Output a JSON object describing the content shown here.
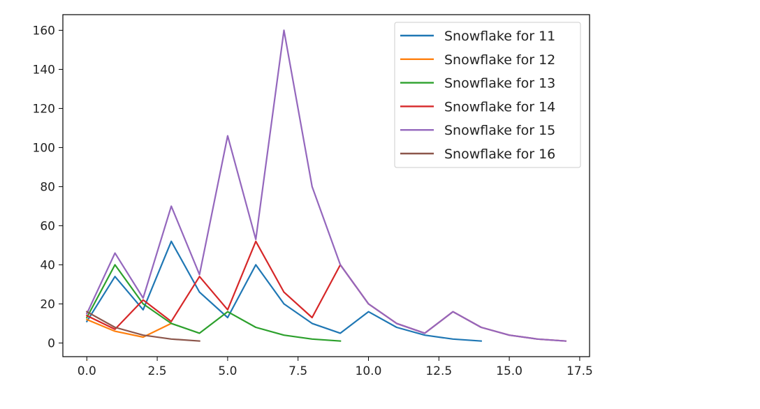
{
  "chart_data": {
    "type": "line",
    "title": "",
    "xlabel": "",
    "ylabel": "",
    "xlim": [
      -0.85,
      17.85
    ],
    "ylim": [
      -7,
      168
    ],
    "xticks": [
      0.0,
      2.5,
      5.0,
      7.5,
      10.0,
      12.5,
      15.0,
      17.5
    ],
    "xtick_labels": [
      "0.0",
      "2.5",
      "5.0",
      "7.5",
      "10.0",
      "12.5",
      "15.0",
      "17.5"
    ],
    "yticks": [
      0,
      20,
      40,
      60,
      80,
      100,
      120,
      140,
      160
    ],
    "ytick_labels": [
      "0",
      "20",
      "40",
      "60",
      "80",
      "100",
      "120",
      "140",
      "160"
    ],
    "grid": false,
    "legend_position": "top-right",
    "series": [
      {
        "name": "Snowflake for 11",
        "color": "#1f77b4",
        "x": [
          0,
          1,
          2,
          3,
          4,
          5,
          6,
          7,
          8,
          9,
          10,
          11,
          12,
          13,
          14
        ],
        "y": [
          11,
          34,
          17,
          52,
          26,
          13,
          40,
          20,
          10,
          5,
          16,
          8,
          4,
          2,
          1
        ]
      },
      {
        "name": "Snowflake for 12",
        "color": "#ff7f0e",
        "x": [
          0,
          1,
          2,
          3
        ],
        "y": [
          12,
          6,
          3,
          10
        ]
      },
      {
        "name": "Snowflake for 13",
        "color": "#2ca02c",
        "x": [
          0,
          1,
          2,
          3,
          4,
          5,
          6,
          7,
          8,
          9
        ],
        "y": [
          13,
          40,
          20,
          10,
          5,
          16,
          8,
          4,
          2,
          1
        ]
      },
      {
        "name": "Snowflake for 14",
        "color": "#d62728",
        "x": [
          0,
          1,
          2,
          3,
          4,
          5,
          6,
          7,
          8,
          9,
          10,
          11,
          12,
          13,
          14,
          15,
          16,
          17
        ],
        "y": [
          14,
          7,
          22,
          11,
          34,
          17,
          52,
          26,
          13,
          40,
          20,
          10,
          5,
          16,
          8,
          4,
          2,
          1
        ]
      },
      {
        "name": "Snowflake for 15",
        "color": "#9467bd",
        "x": [
          0,
          1,
          2,
          3,
          4,
          5,
          6,
          7,
          8,
          9,
          10,
          11,
          12,
          13,
          14,
          15,
          16,
          17
        ],
        "y": [
          15,
          46,
          23,
          70,
          35,
          106,
          53,
          160,
          80,
          40,
          20,
          10,
          5,
          16,
          8,
          4,
          2,
          1
        ]
      },
      {
        "name": "Snowflake for 16",
        "color": "#8c564b",
        "x": [
          0,
          1,
          2,
          3,
          4
        ],
        "y": [
          16,
          8,
          4,
          2,
          1
        ]
      }
    ]
  }
}
